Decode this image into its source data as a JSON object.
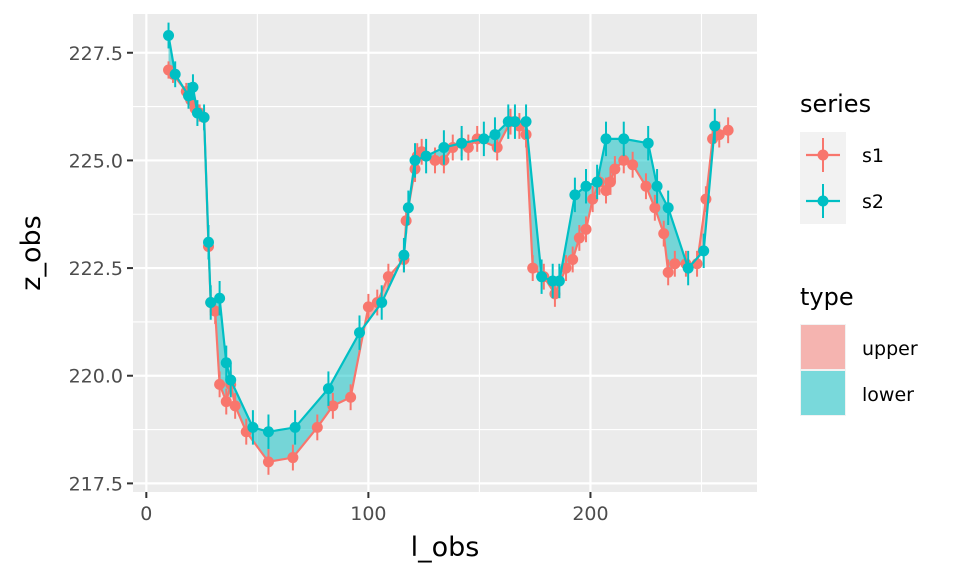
{
  "chart_data": {
    "type": "line",
    "xlabel": "l_obs",
    "ylabel": "z_obs",
    "xlim": [
      -6,
      275
    ],
    "ylim": [
      217.3,
      228.4
    ],
    "x_ticks": [
      0,
      100,
      200
    ],
    "y_ticks": [
      217.5,
      220.0,
      222.5,
      225.0,
      227.5
    ],
    "x_tick_labels": [
      "0",
      "100",
      "200"
    ],
    "y_tick_labels": [
      "217.5",
      "220.0",
      "222.5",
      "225.0",
      "227.5"
    ],
    "grid": true,
    "legend_position": "right",
    "series_legend_title": "series",
    "type_legend_title": "type",
    "fill_legend": [
      {
        "label": "upper",
        "color": "#F8766D"
      },
      {
        "label": "lower",
        "color": "#00BFC4"
      }
    ],
    "series": [
      {
        "name": "s1",
        "color": "#F8766D",
        "x": [
          10,
          12,
          18,
          20,
          22,
          24,
          26,
          28,
          29,
          31,
          33,
          36,
          38,
          40,
          45,
          55,
          66,
          77,
          84,
          92,
          100,
          104,
          109,
          116,
          117,
          121,
          122,
          124,
          130,
          134,
          138,
          142,
          145,
          149,
          158,
          164,
          168,
          171,
          174,
          179,
          184,
          189,
          192,
          195,
          198,
          201,
          204,
          207,
          209,
          211,
          215,
          219,
          225,
          229,
          233,
          235,
          238,
          243,
          248,
          252,
          255,
          258,
          262
        ],
        "y": [
          227.1,
          227.0,
          226.6,
          226.4,
          226.2,
          226.1,
          226.0,
          223.0,
          221.7,
          221.5,
          219.8,
          219.4,
          219.8,
          219.3,
          218.7,
          218.0,
          218.1,
          218.8,
          219.3,
          219.5,
          221.6,
          221.7,
          222.3,
          222.7,
          223.6,
          224.8,
          225.1,
          225.2,
          225.0,
          225.0,
          225.3,
          225.4,
          225.3,
          225.5,
          225.3,
          225.9,
          225.8,
          225.6,
          222.5,
          222.3,
          221.9,
          222.5,
          222.7,
          223.2,
          223.4,
          224.1,
          224.5,
          224.3,
          224.5,
          224.8,
          225.0,
          224.9,
          224.4,
          223.9,
          223.3,
          222.4,
          222.6,
          222.6,
          222.6,
          224.1,
          225.5,
          225.6,
          225.7
        ],
        "error": [
          0.2,
          0.2,
          0.2,
          0.2,
          0.2,
          0.2,
          0.2,
          0.3,
          0.3,
          0.3,
          0.3,
          0.3,
          0.3,
          0.3,
          0.3,
          0.3,
          0.3,
          0.3,
          0.3,
          0.3,
          0.3,
          0.3,
          0.3,
          0.3,
          0.3,
          0.3,
          0.3,
          0.3,
          0.3,
          0.3,
          0.3,
          0.3,
          0.3,
          0.3,
          0.3,
          0.3,
          0.3,
          0.3,
          0.3,
          0.3,
          0.3,
          0.3,
          0.3,
          0.3,
          0.3,
          0.3,
          0.3,
          0.3,
          0.3,
          0.3,
          0.3,
          0.3,
          0.3,
          0.3,
          0.3,
          0.3,
          0.3,
          0.3,
          0.3,
          0.3,
          0.3,
          0.3,
          0.3
        ]
      },
      {
        "name": "s2",
        "color": "#00BFC4",
        "x": [
          10,
          13,
          19,
          21,
          23,
          26,
          28,
          29,
          33,
          36,
          38,
          48,
          55,
          67,
          82,
          96,
          106,
          116,
          118,
          121,
          126,
          134,
          142,
          152,
          157,
          163,
          166,
          171,
          178,
          183,
          186,
          193,
          198,
          203,
          207,
          215,
          226,
          230,
          235,
          244,
          251,
          256
        ],
        "y": [
          227.9,
          227.0,
          226.5,
          226.7,
          226.1,
          226.0,
          223.1,
          221.7,
          221.8,
          220.3,
          219.9,
          218.8,
          218.7,
          218.8,
          219.7,
          221.0,
          221.7,
          222.8,
          223.9,
          225.0,
          225.1,
          225.3,
          225.4,
          225.5,
          225.6,
          225.9,
          225.9,
          225.9,
          222.3,
          222.2,
          222.2,
          224.2,
          224.4,
          224.5,
          225.5,
          225.5,
          225.4,
          224.4,
          223.9,
          222.5,
          222.9,
          225.8
        ],
        "error": [
          0.3,
          0.3,
          0.3,
          0.3,
          0.3,
          0.3,
          0.4,
          0.4,
          0.4,
          0.4,
          0.4,
          0.4,
          0.4,
          0.4,
          0.4,
          0.4,
          0.4,
          0.4,
          0.4,
          0.4,
          0.4,
          0.4,
          0.4,
          0.4,
          0.4,
          0.4,
          0.4,
          0.4,
          0.4,
          0.4,
          0.4,
          0.4,
          0.4,
          0.4,
          0.4,
          0.4,
          0.4,
          0.4,
          0.4,
          0.4,
          0.4,
          0.4
        ]
      }
    ]
  }
}
